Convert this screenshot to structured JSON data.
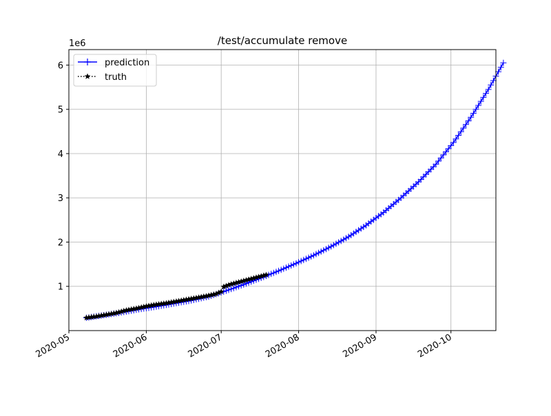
{
  "chart_data": {
    "type": "line",
    "title": "/test/accumulate remove",
    "xlabel": "",
    "ylabel": "",
    "y_offset_label": "1e6",
    "x_axis": {
      "kind": "date",
      "range": [
        "2020-05-01",
        "2020-10-19"
      ]
    },
    "y_axis": {
      "range": [
        0,
        6.35
      ],
      "unit_multiplier": 1000000
    },
    "x_ticks": [
      {
        "date": "2020-05-01",
        "label": "2020-05"
      },
      {
        "date": "2020-06-01",
        "label": "2020-06"
      },
      {
        "date": "2020-07-01",
        "label": "2020-07"
      },
      {
        "date": "2020-08-01",
        "label": "2020-08"
      },
      {
        "date": "2020-09-01",
        "label": "2020-09"
      },
      {
        "date": "2020-10-01",
        "label": "2020-10"
      }
    ],
    "y_ticks": [
      {
        "value": 1,
        "label": "1"
      },
      {
        "value": 2,
        "label": "2"
      },
      {
        "value": 3,
        "label": "3"
      },
      {
        "value": 4,
        "label": "4"
      },
      {
        "value": 5,
        "label": "5"
      },
      {
        "value": 6,
        "label": "6"
      }
    ],
    "grid": true,
    "legend_position": "top-left",
    "series": [
      {
        "name": "prediction",
        "color": "#0000ff",
        "marker": "plus",
        "line_style": "solid",
        "points": [
          [
            "2020-05-08",
            0.29
          ],
          [
            "2020-05-15",
            0.35
          ],
          [
            "2020-05-22",
            0.41
          ],
          [
            "2020-05-29",
            0.48
          ],
          [
            "2020-06-05",
            0.54
          ],
          [
            "2020-06-12",
            0.61
          ],
          [
            "2020-06-19",
            0.68
          ],
          [
            "2020-06-26",
            0.77
          ],
          [
            "2020-07-03",
            0.9
          ],
          [
            "2020-07-10",
            1.04
          ],
          [
            "2020-07-17",
            1.19
          ],
          [
            "2020-07-24",
            1.35
          ],
          [
            "2020-07-31",
            1.52
          ],
          [
            "2020-08-07",
            1.7
          ],
          [
            "2020-08-14",
            1.9
          ],
          [
            "2020-08-21",
            2.12
          ],
          [
            "2020-08-28",
            2.38
          ],
          [
            "2020-09-04",
            2.67
          ],
          [
            "2020-09-11",
            3.0
          ],
          [
            "2020-09-18",
            3.36
          ],
          [
            "2020-09-25",
            3.76
          ],
          [
            "2020-10-02",
            4.25
          ],
          [
            "2020-10-09",
            4.82
          ],
          [
            "2020-10-16",
            5.45
          ],
          [
            "2020-10-22",
            6.05
          ]
        ]
      },
      {
        "name": "truth",
        "color": "#000000",
        "marker": "star",
        "line_style": "dotted",
        "points": [
          [
            "2020-05-08",
            0.29
          ],
          [
            "2020-05-12",
            0.32
          ],
          [
            "2020-05-16",
            0.36
          ],
          [
            "2020-05-20",
            0.4
          ],
          [
            "2020-05-24",
            0.46
          ],
          [
            "2020-05-28",
            0.5
          ],
          [
            "2020-06-01",
            0.55
          ],
          [
            "2020-06-05",
            0.59
          ],
          [
            "2020-06-09",
            0.62
          ],
          [
            "2020-06-13",
            0.66
          ],
          [
            "2020-06-17",
            0.7
          ],
          [
            "2020-06-21",
            0.74
          ],
          [
            "2020-06-25",
            0.78
          ],
          [
            "2020-06-29",
            0.83
          ],
          [
            "2020-07-01",
            0.88
          ],
          [
            "2020-07-02",
            0.99
          ],
          [
            "2020-07-05",
            1.05
          ],
          [
            "2020-07-09",
            1.11
          ],
          [
            "2020-07-13",
            1.17
          ],
          [
            "2020-07-17",
            1.23
          ],
          [
            "2020-07-19",
            1.26
          ]
        ]
      }
    ]
  }
}
